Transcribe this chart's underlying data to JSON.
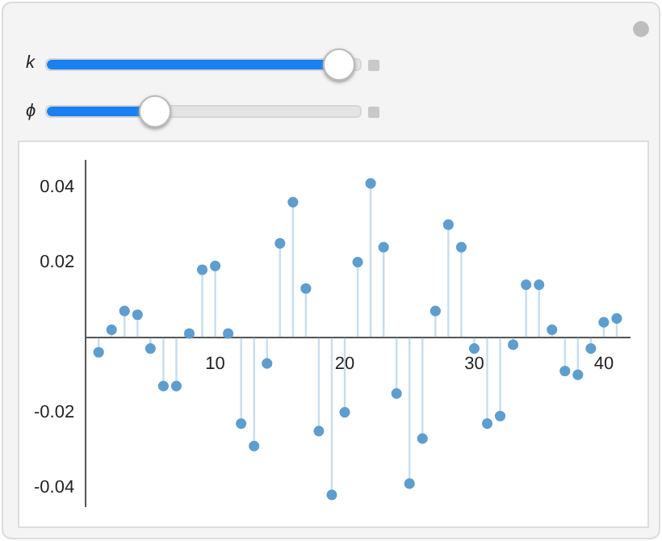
{
  "chart_data": {
    "type": "lollipop",
    "x": [
      1,
      2,
      3,
      4,
      5,
      6,
      7,
      8,
      9,
      10,
      11,
      12,
      13,
      14,
      15,
      16,
      17,
      18,
      19,
      20,
      21,
      22,
      23,
      24,
      25,
      26,
      27,
      28,
      29,
      30,
      31,
      32,
      33,
      34,
      35,
      36,
      37,
      38,
      39,
      40,
      41
    ],
    "series": [
      {
        "color": "#5e9ecf",
        "values": [
          -0.004,
          0.002,
          0.007,
          0.006,
          -0.003,
          -0.013,
          -0.013,
          0.001,
          0.018,
          0.019,
          0.001,
          -0.023,
          -0.029,
          -0.007,
          0.025,
          0.036,
          0.013,
          -0.025,
          -0.042,
          -0.02,
          0.02,
          0.041,
          0.024,
          -0.015,
          -0.039,
          -0.027,
          0.007,
          0.03,
          0.024,
          -0.003,
          -0.023,
          -0.021,
          -0.002,
          0.014,
          0.014,
          0.002,
          -0.009,
          -0.01,
          -0.003,
          0.004,
          0.005
        ]
      }
    ],
    "xlim": [
      0,
      42
    ],
    "xticks": [
      10,
      20,
      30,
      40
    ],
    "ylim": [
      -0.045,
      0.047
    ],
    "yticks": [
      -0.04,
      -0.02,
      0.02,
      0.04
    ],
    "grid": false,
    "legend": false,
    "marker": "circle",
    "annotations": [
      "k",
      "ϕ"
    ]
  }
}
